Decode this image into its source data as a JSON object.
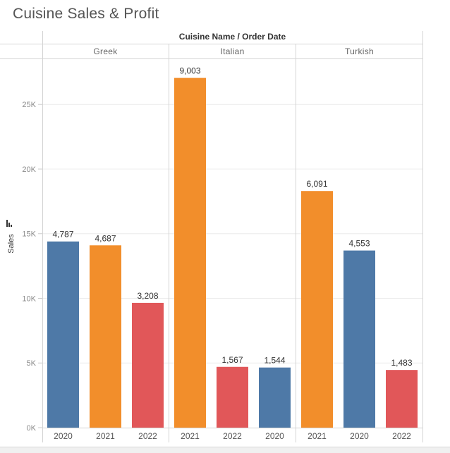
{
  "title": "Cuisine Sales & Profit",
  "header": "Cuisine Name / Order Date",
  "colors": {
    "2020": "#4e79a7",
    "2021": "#f28e2b",
    "2022": "#e15759"
  },
  "chart_data": {
    "type": "bar",
    "ylabel": "Sales",
    "ylim": [
      0,
      28500
    ],
    "yticks": [
      0,
      5000,
      10000,
      15000,
      20000,
      25000
    ],
    "ytick_labels": [
      "0K",
      "5K",
      "10K",
      "15K",
      "20K",
      "25K"
    ],
    "grid": true,
    "panes": [
      {
        "name": "Greek",
        "bars": [
          {
            "year": "2020",
            "sales": 14400,
            "label": "4,787"
          },
          {
            "year": "2021",
            "sales": 14100,
            "label": "4,687"
          },
          {
            "year": "2022",
            "sales": 9650,
            "label": "3,208"
          }
        ]
      },
      {
        "name": "Italian",
        "bars": [
          {
            "year": "2021",
            "sales": 27050,
            "label": "9,003"
          },
          {
            "year": "2022",
            "sales": 4700,
            "label": "1,567"
          },
          {
            "year": "2020",
            "sales": 4650,
            "label": "1,544"
          }
        ]
      },
      {
        "name": "Turkish",
        "bars": [
          {
            "year": "2021",
            "sales": 18300,
            "label": "6,091"
          },
          {
            "year": "2020",
            "sales": 13700,
            "label": "4,553"
          },
          {
            "year": "2022",
            "sales": 4460,
            "label": "1,483"
          }
        ]
      }
    ]
  }
}
